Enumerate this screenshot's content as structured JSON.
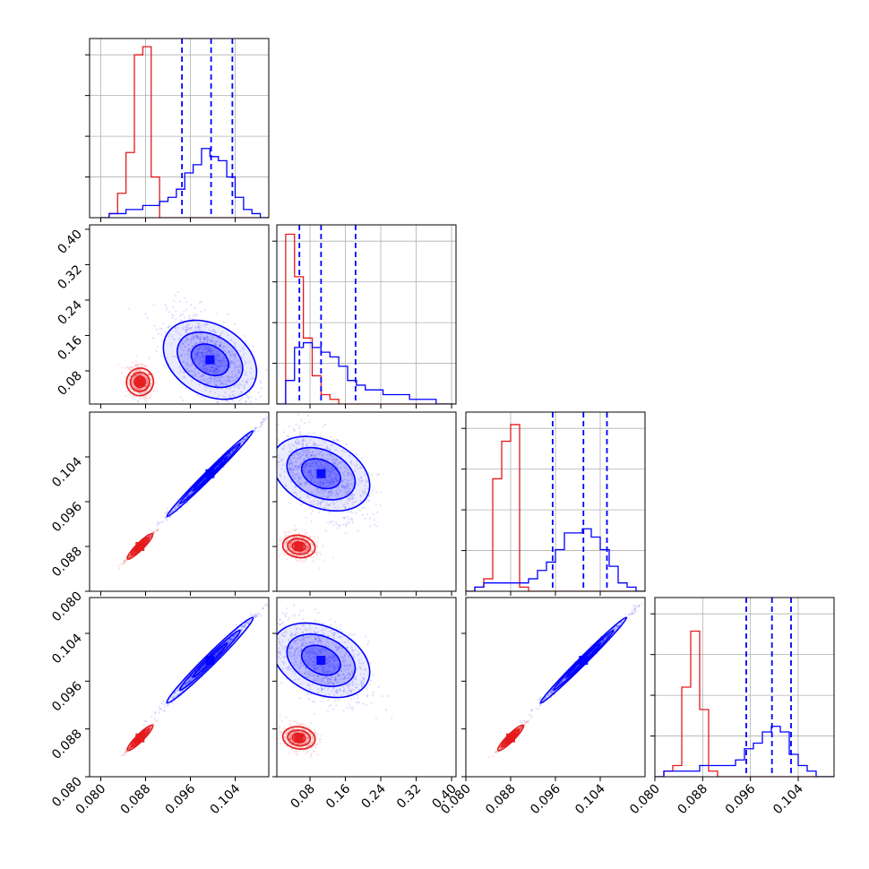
{
  "colors": {
    "red": "#e41a1c",
    "blue": "#0000ff",
    "grid": "#b0b0b0",
    "frame": "#000000"
  },
  "chart_data": {
    "type": "corner",
    "title": "",
    "variables": [
      {
        "range": [
          0.078,
          0.11
        ],
        "ticks": [
          "0.080",
          "0.088",
          "0.096",
          "0.104"
        ],
        "tick_values": [
          0.08,
          0.088,
          0.096,
          0.104
        ]
      },
      {
        "range": [
          0.005,
          0.41
        ],
        "ticks": [
          "0.08",
          "0.16",
          "0.24",
          "0.32",
          "0.40"
        ],
        "tick_values": [
          0.08,
          0.16,
          0.24,
          0.32,
          0.4
        ]
      },
      {
        "range": [
          0.08,
          0.112
        ],
        "ticks": [
          "0.080",
          "0.088",
          "0.096",
          "0.104"
        ],
        "tick_values": [
          0.08,
          0.088,
          0.096,
          0.104
        ]
      },
      {
        "range": [
          0.08,
          0.11
        ],
        "ticks": [
          "0.080",
          "0.088",
          "0.096",
          "0.104"
        ],
        "tick_values": [
          0.08,
          0.088,
          0.096,
          0.104
        ]
      }
    ],
    "series": [
      {
        "color": "red",
        "center": [
          0.087,
          0.055,
          0.088,
          0.0865
        ]
      },
      {
        "color": "blue",
        "center": [
          0.0995,
          0.105,
          0.101,
          0.0995
        ]
      }
    ],
    "histograms": [
      {
        "bins": [
          0.08,
          0.0815,
          0.083,
          0.0845,
          0.086,
          0.0875,
          0.089,
          0.0905,
          0.092,
          0.0935,
          0.095,
          0.0965,
          0.098,
          0.0995,
          0.101,
          0.1025,
          0.104,
          0.1055,
          0.107,
          0.1085,
          0.11
        ],
        "red": [
          0.0,
          0.01,
          0.06,
          0.16,
          0.4,
          0.42,
          0.1,
          0.0,
          0.0,
          0.0,
          0.0,
          0.0,
          0.0,
          0.0,
          0.0,
          0.0,
          0.0,
          0.0,
          0.0,
          0.0
        ],
        "blue": [
          0.0,
          0.01,
          0.01,
          0.02,
          0.02,
          0.03,
          0.03,
          0.04,
          0.05,
          0.07,
          0.11,
          0.13,
          0.17,
          0.15,
          0.14,
          0.1,
          0.05,
          0.02,
          0.01,
          0.0
        ],
        "ylim": [
          0,
          0.44
        ],
        "quantiles": [
          0.0945,
          0.0997,
          0.1035
        ]
      },
      {
        "bins": [
          0.005,
          0.025,
          0.045,
          0.065,
          0.085,
          0.105,
          0.125,
          0.145,
          0.165,
          0.185,
          0.205,
          0.225,
          0.245,
          0.265,
          0.285,
          0.305,
          0.325,
          0.345,
          0.365,
          0.385,
          0.405
        ],
        "red": [
          0.0,
          0.36,
          0.27,
          0.14,
          0.06,
          0.02,
          0.01,
          0.0,
          0.0,
          0.0,
          0.0,
          0.0,
          0.0,
          0.0,
          0.0,
          0.0,
          0.0,
          0.0,
          0.0,
          0.0
        ],
        "blue": [
          0.0,
          0.05,
          0.12,
          0.13,
          0.12,
          0.11,
          0.1,
          0.08,
          0.05,
          0.04,
          0.03,
          0.03,
          0.02,
          0.02,
          0.02,
          0.01,
          0.01,
          0.01,
          0.0,
          0.0
        ],
        "ylim": [
          0,
          0.38
        ],
        "quantiles": [
          0.056,
          0.105,
          0.183
        ]
      },
      {
        "bins": [
          0.08,
          0.0816,
          0.0832,
          0.0848,
          0.0864,
          0.088,
          0.0896,
          0.0912,
          0.0928,
          0.0944,
          0.096,
          0.0976,
          0.0992,
          0.1008,
          0.1024,
          0.104,
          0.1056,
          0.1072,
          0.1088,
          0.1104,
          0.112
        ],
        "red": [
          0.0,
          0.01,
          0.03,
          0.27,
          0.36,
          0.4,
          0.01,
          0.0,
          0.0,
          0.0,
          0.0,
          0.0,
          0.0,
          0.0,
          0.0,
          0.0,
          0.0,
          0.0,
          0.0,
          0.0
        ],
        "blue": [
          0.0,
          0.01,
          0.02,
          0.02,
          0.02,
          0.02,
          0.02,
          0.03,
          0.05,
          0.07,
          0.1,
          0.14,
          0.14,
          0.15,
          0.13,
          0.1,
          0.06,
          0.02,
          0.01,
          0.0
        ],
        "ylim": [
          0,
          0.43
        ],
        "quantiles": [
          0.0955,
          0.101,
          0.1052
        ]
      },
      {
        "bins": [
          0.08,
          0.0815,
          0.083,
          0.0845,
          0.086,
          0.0875,
          0.089,
          0.0905,
          0.092,
          0.0935,
          0.095,
          0.0965,
          0.098,
          0.0995,
          0.101,
          0.1025,
          0.104,
          0.1055,
          0.107,
          0.1085,
          0.11
        ],
        "red": [
          0.0,
          0.01,
          0.02,
          0.16,
          0.26,
          0.12,
          0.01,
          0.0,
          0.0,
          0.0,
          0.0,
          0.0,
          0.0,
          0.0,
          0.0,
          0.0,
          0.0,
          0.0,
          0.0,
          0.0
        ],
        "blue": [
          0.0,
          0.01,
          0.01,
          0.01,
          0.01,
          0.02,
          0.02,
          0.02,
          0.02,
          0.03,
          0.05,
          0.06,
          0.08,
          0.09,
          0.08,
          0.04,
          0.02,
          0.01,
          0.0,
          0.0
        ],
        "ylim": [
          0,
          0.32
        ],
        "quantiles": [
          0.0953,
          0.0996,
          0.1028
        ]
      }
    ],
    "pairs": [
      {
        "row": 1,
        "col": 0,
        "rho_blue": -0.55,
        "rho_red": -0.3
      },
      {
        "row": 2,
        "col": 0,
        "rho_blue": 0.995,
        "rho_red": 0.99
      },
      {
        "row": 2,
        "col": 1,
        "rho_blue": -0.5,
        "rho_red": -0.2
      },
      {
        "row": 3,
        "col": 0,
        "rho_blue": 0.99,
        "rho_red": 0.99
      },
      {
        "row": 3,
        "col": 1,
        "rho_blue": -0.5,
        "rho_red": -0.2
      },
      {
        "row": 3,
        "col": 2,
        "rho_blue": 0.995,
        "rho_red": 0.99
      }
    ],
    "grid": true,
    "legend": "none"
  }
}
